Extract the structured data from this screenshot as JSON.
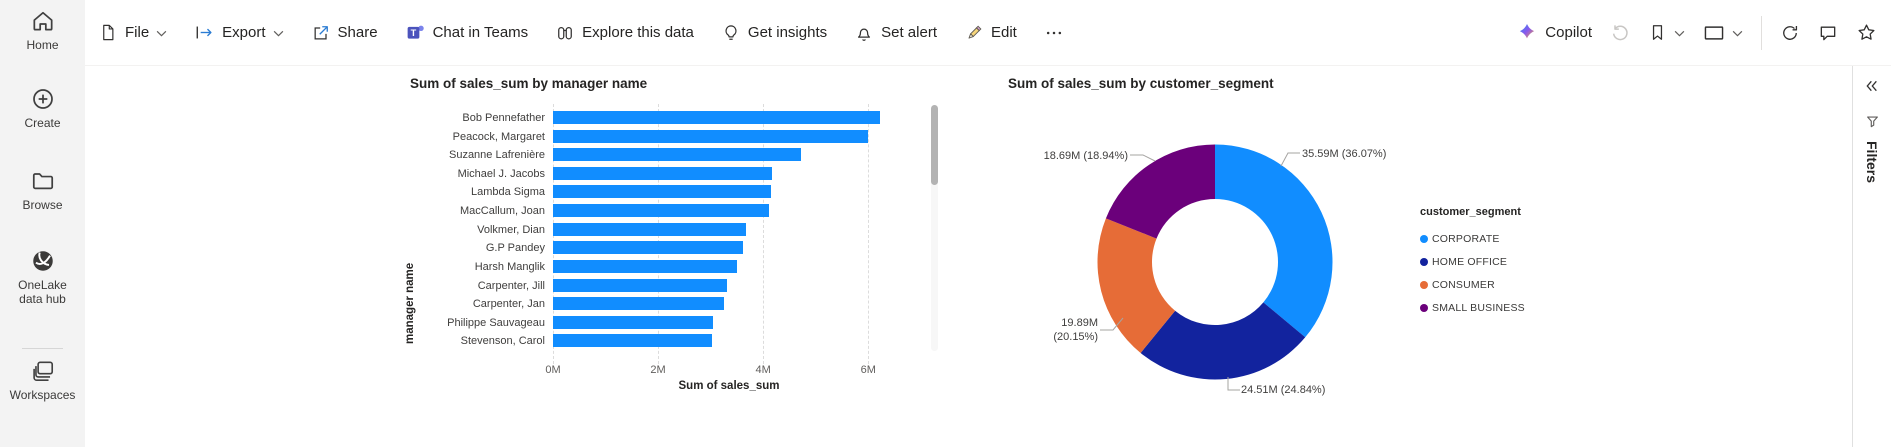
{
  "sidebar": {
    "items": [
      {
        "label": "Home",
        "icon": "home-icon"
      },
      {
        "label": "Create",
        "icon": "create-icon"
      },
      {
        "label": "Browse",
        "icon": "browse-icon"
      },
      {
        "label": "OneLake data hub",
        "icon": "onelake-icon"
      },
      {
        "label": "Workspaces",
        "icon": "workspaces-icon"
      }
    ]
  },
  "toolbar": {
    "file": "File",
    "export": "Export",
    "share": "Share",
    "chat_in_teams": "Chat in Teams",
    "explore": "Explore this data",
    "get_insights": "Get insights",
    "set_alert": "Set alert",
    "edit": "Edit",
    "copilot": "Copilot",
    "icons": [
      "more-options-icon",
      "undo-icon",
      "bookmark-icon",
      "view-icon",
      "refresh-icon",
      "comment-icon",
      "star-icon"
    ]
  },
  "filters_pane": {
    "title": "Filters",
    "icons": [
      "chevrons-left-icon",
      "filter-funnel-icon"
    ]
  },
  "chart_data": [
    {
      "type": "bar",
      "orientation": "horizontal",
      "title": "Sum of sales_sum by manager name",
      "xlabel": "Sum of sales_sum",
      "ylabel": "manager name",
      "categories": [
        "Bob Pennefather",
        "Peacock, Margaret",
        "Suzanne Lafrenière",
        "Michael J. Jacobs",
        "Lambda Sigma",
        "MacCallum, Joan",
        "Volkmer, Dian",
        "G.P Pandey",
        "Harsh Manglik",
        "Carpenter, Jill",
        "Carpenter, Jan",
        "Philippe Sauvageau",
        "Stevenson, Carol"
      ],
      "values_millions": [
        6.23,
        5.99,
        4.72,
        4.16,
        4.15,
        4.12,
        3.68,
        3.61,
        3.5,
        3.32,
        3.25,
        3.04,
        3.03
      ],
      "xlim": [
        0,
        6.7
      ],
      "x_ticks": [
        {
          "label": "0M",
          "value": 0
        },
        {
          "label": "2M",
          "value": 2
        },
        {
          "label": "4M",
          "value": 4
        },
        {
          "label": "6M",
          "value": 6
        }
      ],
      "bar_color": "#118DFF",
      "grid": "vertical-dashed",
      "scrollbar": true
    },
    {
      "type": "donut",
      "title": "Sum of sales_sum by customer_segment",
      "legend_title": "customer_segment",
      "legend_position": "right",
      "segments": [
        {
          "name": "CORPORATE",
          "value": "35.59M",
          "pct": 36.07,
          "callout": "35.59M (36.07%)",
          "color": "#118DFF"
        },
        {
          "name": "HOME OFFICE",
          "value": "24.51M",
          "pct": 24.84,
          "callout": "24.51M (24.84%)",
          "color": "#12239E"
        },
        {
          "name": "CONSUMER",
          "value": "19.89M",
          "pct": 20.15,
          "callout": "19.89M\n(20.15%)",
          "color": "#E66C37"
        },
        {
          "name": "SMALL BUSINESS",
          "value": "18.69M",
          "pct": 18.94,
          "callout": "18.69M (18.94%)",
          "color": "#6B007B"
        }
      ]
    }
  ]
}
